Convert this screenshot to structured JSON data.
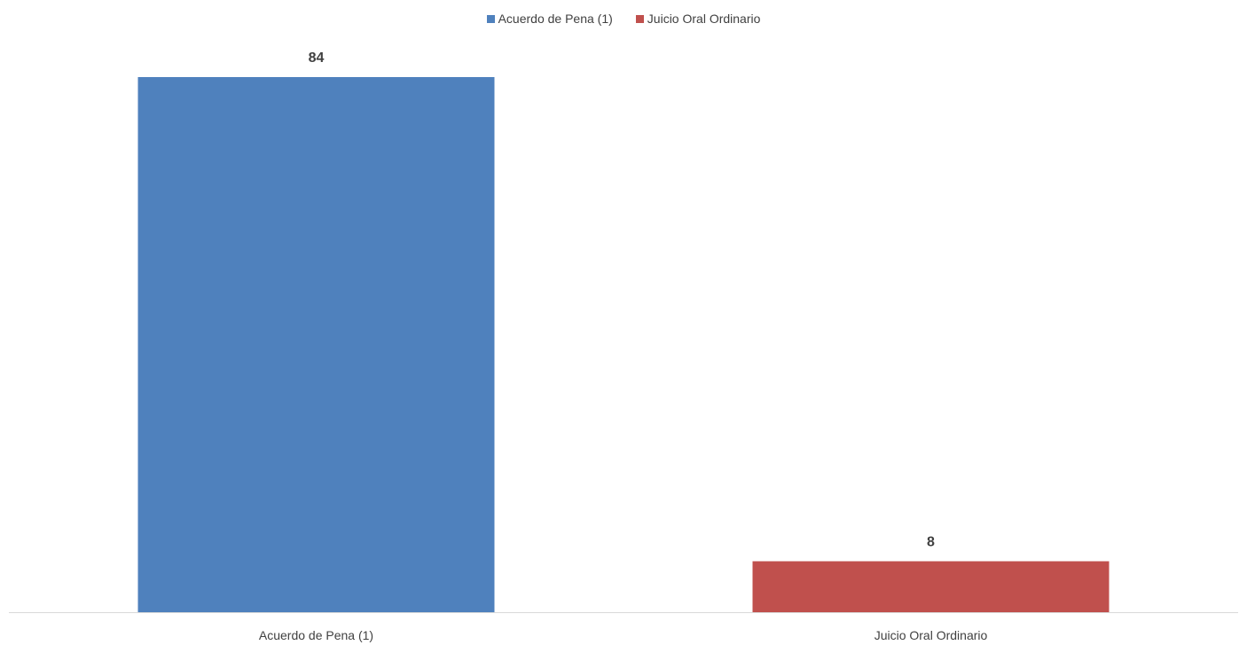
{
  "chart_data": {
    "type": "bar",
    "categories": [
      "Acuerdo de Pena (1)",
      "Juicio Oral Ordinario"
    ],
    "series": [
      {
        "name": "Acuerdo de Pena (1)",
        "values": [
          84,
          null
        ],
        "color": "#4F81BD"
      },
      {
        "name": "Juicio Oral Ordinario",
        "values": [
          null,
          8
        ],
        "color": "#C0504D"
      }
    ],
    "data_labels": [
      "84",
      "8"
    ],
    "ylim": [
      0,
      84
    ],
    "grid": false,
    "legend_position": "top",
    "title": "",
    "xlabel": "",
    "ylabel": ""
  }
}
